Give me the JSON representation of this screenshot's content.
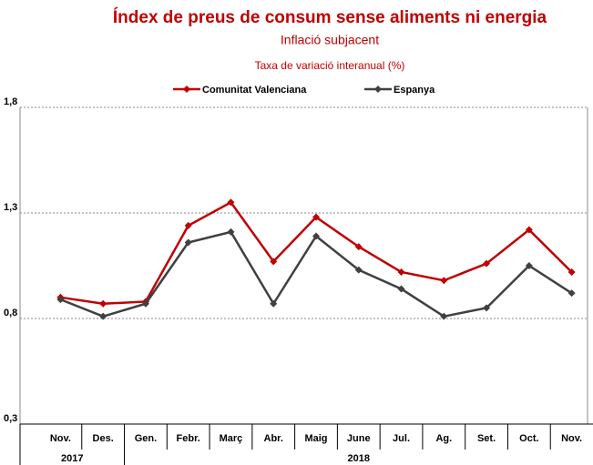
{
  "chart_data": {
    "type": "line",
    "title": "Índex de preus de consum sense aliments ni energia",
    "subtitle": "Inflació subjacent",
    "y_axis_label": "Taxa de variació interanual (%)",
    "categories": [
      "Nov.",
      "Des.",
      "Gen.",
      "Febr.",
      "Març",
      "Abr.",
      "Maig",
      "June",
      "Jul.",
      "Ag.",
      "Set.",
      "Oct.",
      "Nov."
    ],
    "year_labels": [
      "2017",
      "2018"
    ],
    "series": [
      {
        "name": "Comunitat Valenciana",
        "color": "#c00000",
        "values": [
          0.9,
          0.87,
          0.88,
          1.24,
          1.35,
          1.07,
          1.28,
          1.14,
          1.02,
          0.98,
          1.06,
          1.22,
          1.02
        ]
      },
      {
        "name": "Espanya",
        "color": "#404040",
        "values": [
          0.89,
          0.81,
          0.87,
          1.16,
          1.21,
          0.87,
          1.19,
          1.03,
          0.94,
          0.81,
          0.85,
          1.05,
          0.92
        ]
      }
    ],
    "ylim": [
      0.3,
      1.8
    ],
    "yticks": [
      {
        "value": 0.3,
        "label": "0,3"
      },
      {
        "value": 0.8,
        "label": "0,8"
      },
      {
        "value": 1.3,
        "label": "1,3"
      },
      {
        "value": 1.8,
        "label": "1,8"
      }
    ],
    "grid": true,
    "legend": "top"
  }
}
